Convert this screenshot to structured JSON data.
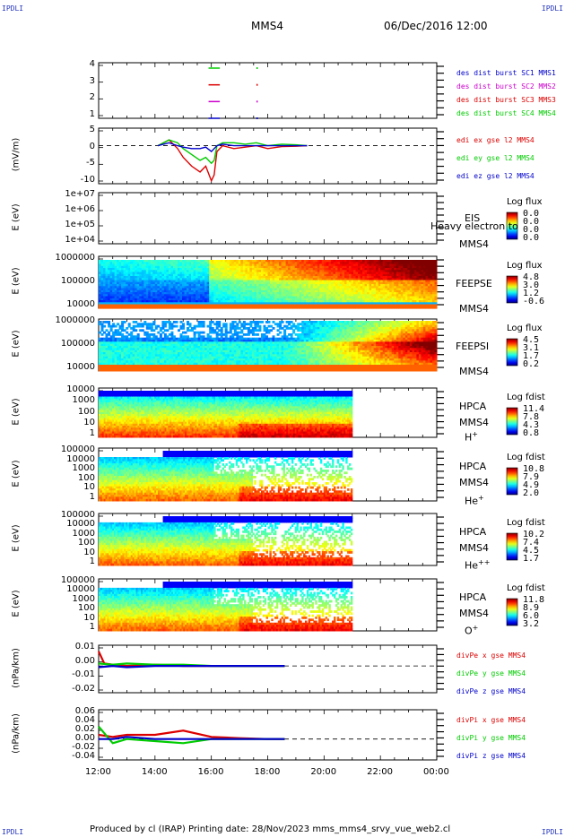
{
  "header": {
    "corner_tl": "IPDLI",
    "corner_tr": "IPDLI",
    "corner_bl": "IPDLI",
    "corner_br": "IPDLI",
    "spacecraft": "MMS4",
    "datetime": "06/Dec/2016 12:00"
  },
  "footer": {
    "text": "Produced by cl (IRAP)   Printing date: 28/Nov/2023   mms_mms4_srvy_vue_web2.cl"
  },
  "colors": {
    "c1": "#0000cc",
    "c2": "#cc00cc",
    "c3": "#dd0000",
    "c4": "#00cc00"
  },
  "chart_data": [
    {
      "type": "line",
      "name": "burst availability",
      "yticks": [
        "1",
        "2",
        "3",
        "4"
      ],
      "legend": [
        "des dist burst SC1 MMS1",
        "des dist burst SC2 MMS2",
        "des dist burst SC3 MMS3",
        "des dist burst SC4 MMS4"
      ],
      "segments": [
        {
          "sc": 4,
          "from": 15.9,
          "to": 16.3
        },
        {
          "sc": 3,
          "from": 15.9,
          "to": 16.3
        },
        {
          "sc": 2,
          "from": 15.9,
          "to": 16.3
        },
        {
          "sc": 1,
          "from": 15.9,
          "to": 16.3
        }
      ]
    },
    {
      "type": "line",
      "ylabel": "(mV/m)",
      "yticks": [
        "5",
        "0",
        "-5",
        "-10"
      ],
      "ylim": [
        -13,
        6
      ],
      "legend": [
        "edi ex gse l2 MMS4",
        "edi ey gse l2 MMS4",
        "edi ez gse l2 MMS4"
      ],
      "series": [
        {
          "name": "edi ex gse l2 MMS4",
          "x": [
            14.1,
            14.5,
            14.8,
            15.0,
            15.3,
            15.6,
            15.8,
            16.0,
            16.1,
            16.2,
            16.4,
            16.8,
            17.2,
            17.6,
            18.0,
            18.5,
            19.0,
            19.4
          ],
          "y": [
            0,
            2,
            -1,
            -4,
            -7,
            -9,
            -7,
            -12,
            -10,
            -2,
            0,
            -1,
            -0.5,
            0,
            -1,
            -0.3,
            -0.2,
            0
          ]
        },
        {
          "name": "edi ey gse l2 MMS4",
          "x": [
            14.1,
            14.5,
            14.8,
            15.0,
            15.3,
            15.6,
            15.8,
            16.0,
            16.1,
            16.2,
            16.4,
            16.8,
            17.2,
            17.6,
            18.0,
            18.5,
            19.0,
            19.4
          ],
          "y": [
            0,
            2,
            1,
            -1,
            -3,
            -5,
            -4,
            -6,
            -5,
            0,
            1,
            1,
            0.5,
            1,
            0,
            0.5,
            0.3,
            0
          ]
        },
        {
          "name": "edi ez gse l2 MMS4",
          "x": [
            14.1,
            14.5,
            14.8,
            15.0,
            15.3,
            15.6,
            15.8,
            16.0,
            16.1,
            16.2,
            16.4,
            16.8,
            17.2,
            17.6,
            18.0,
            18.5,
            19.0,
            19.4
          ],
          "y": [
            0,
            1,
            0,
            -0.5,
            -1,
            -1,
            -0.5,
            -2,
            -1,
            0,
            0.5,
            0,
            0,
            0,
            0,
            0,
            0,
            0
          ]
        }
      ]
    },
    {
      "type": "heatmap",
      "ylabel": "E (eV)",
      "yticks": [
        "1e+07",
        "1e+06",
        "1e+05",
        "1e+04"
      ],
      "label": "EIS",
      "label2": "Heavy electron to",
      "sc": "MMS4",
      "cbtitle": "Log flux",
      "cbvals": [
        "0.0",
        "0.0",
        "0.0",
        "0.0"
      ]
    },
    {
      "type": "heatmap",
      "ylabel": "E (eV)",
      "yticks": [
        "1000000",
        "100000",
        "10000"
      ],
      "label": "FEEPSE",
      "sc": "MMS4",
      "cbtitle": "Log flux",
      "cbvals": [
        "4.8",
        "3.0",
        "1.2",
        "-0.6"
      ]
    },
    {
      "type": "heatmap",
      "ylabel": "E (eV)",
      "yticks": [
        "1000000",
        "100000",
        "10000"
      ],
      "label": "FEEPSI",
      "sc": "MMS4",
      "cbtitle": "Log flux",
      "cbvals": [
        "4.5",
        "3.1",
        "1.7",
        "0.2"
      ]
    },
    {
      "type": "heatmap",
      "ylabel": "E (eV)",
      "yticks": [
        "10000",
        "1000",
        "100",
        "10",
        "1"
      ],
      "label": "HPCA",
      "sc": "MMS4",
      "species": "H",
      "charge": "+",
      "cbtitle": "Log fdist",
      "cbvals": [
        "11.4",
        "7.8",
        "4.3",
        "0.8"
      ]
    },
    {
      "type": "heatmap",
      "ylabel": "E (eV)",
      "yticks": [
        "100000",
        "10000",
        "1000",
        "100",
        "10",
        "1"
      ],
      "label": "HPCA",
      "sc": "MMS4",
      "species": "He",
      "charge": "+",
      "cbtitle": "Log fdist",
      "cbvals": [
        "10.8",
        "7.9",
        "4.9",
        "2.0"
      ]
    },
    {
      "type": "heatmap",
      "ylabel": "E (eV)",
      "yticks": [
        "100000",
        "10000",
        "1000",
        "100",
        "10",
        "1"
      ],
      "label": "HPCA",
      "sc": "MMS4",
      "species": "He",
      "charge": "++",
      "cbtitle": "Log fdist",
      "cbvals": [
        "10.2",
        "7.4",
        "4.5",
        "1.7"
      ]
    },
    {
      "type": "heatmap",
      "ylabel": "E (eV)",
      "yticks": [
        "100000",
        "10000",
        "1000",
        "100",
        "10",
        "1"
      ],
      "label": "HPCA",
      "sc": "MMS4",
      "species": "O",
      "charge": "+",
      "cbtitle": "Log fdist",
      "cbvals": [
        "11.8",
        "8.9",
        "6.0",
        "3.2"
      ]
    },
    {
      "type": "line",
      "ylabel": "(nPa/km)",
      "yticks": [
        "0.01",
        "0.00",
        "-0.01",
        "-0.02"
      ],
      "ylim": [
        -0.022,
        0.017
      ],
      "legend": [
        "divPe x gse MMS4",
        "divPe y gse MMS4",
        "divPe z gse MMS4"
      ],
      "series": [
        {
          "name": "divPe x gse MMS4",
          "x": [
            12.0,
            12.2,
            12.5,
            13.0,
            14.0,
            15.0,
            16.0,
            17.0,
            18.0,
            18.6
          ],
          "y": [
            0.012,
            0.002,
            0.001,
            0.0,
            0.001,
            0.0,
            0.0,
            0.0,
            0.0,
            0.0
          ]
        },
        {
          "name": "divPe y gse MMS4",
          "x": [
            12.0,
            12.5,
            13.0,
            14.0,
            15.0,
            16.0,
            17.0,
            18.0,
            18.6
          ],
          "y": [
            0.002,
            0.001,
            0.002,
            0.001,
            0.001,
            0.0,
            0.0,
            0.0,
            0.0
          ]
        },
        {
          "name": "divPe z gse MMS4",
          "x": [
            12.0,
            12.5,
            13.0,
            14.0,
            15.0,
            16.0,
            17.0,
            18.0,
            18.6
          ],
          "y": [
            -0.001,
            0.0,
            -0.001,
            0.0,
            0.0,
            0.0,
            0.0,
            0.0,
            0.0
          ]
        }
      ]
    },
    {
      "type": "line",
      "ylabel": "(nPa/km)",
      "yticks": [
        "0.06",
        "0.04",
        "0.02",
        "0.00",
        "-0.02",
        "-0.04"
      ],
      "ylim": [
        -0.05,
        0.07
      ],
      "legend": [
        "divPi x gse MMS4",
        "divPi y gse MMS4",
        "divPi z gse MMS4"
      ],
      "series": [
        {
          "name": "divPi x gse MMS4",
          "x": [
            12.0,
            12.5,
            13.0,
            14.0,
            15.0,
            16.0,
            17.0,
            18.0,
            18.6
          ],
          "y": [
            0.01,
            0.005,
            0.01,
            0.01,
            0.02,
            0.005,
            0.002,
            0.0,
            0.0
          ]
        },
        {
          "name": "divPi y gse MMS4",
          "x": [
            12.0,
            12.5,
            13.0,
            14.0,
            15.0,
            16.0,
            17.0,
            18.0,
            18.6
          ],
          "y": [
            0.03,
            -0.01,
            0.0,
            -0.005,
            -0.01,
            0.0,
            0.0,
            0.0,
            0.0
          ]
        },
        {
          "name": "divPi z gse MMS4",
          "x": [
            12.0,
            12.5,
            13.0,
            14.0,
            15.0,
            16.0,
            17.0,
            18.0,
            18.6
          ],
          "y": [
            0.0,
            0.0,
            0.005,
            0.0,
            0.0,
            0.0,
            0.0,
            0.0,
            0.0
          ]
        }
      ]
    }
  ],
  "xaxis": {
    "ticks": [
      "12:00",
      "14:00",
      "16:00",
      "18:00",
      "20:00",
      "22:00",
      "00:00"
    ],
    "range_hours": [
      12,
      24
    ]
  }
}
